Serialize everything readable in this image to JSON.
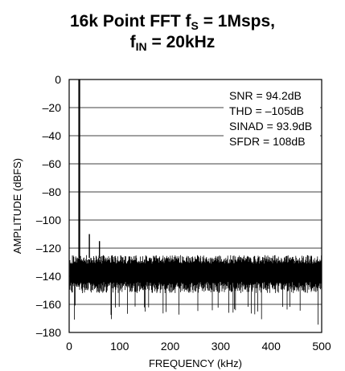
{
  "chart_data": {
    "type": "line",
    "title_line1_pre": "16k Point FFT f",
    "title_line1_sub": "S",
    "title_line1_post": " = 1Msps,",
    "title_line2_pre": "f",
    "title_line2_sub": "IN",
    "title_line2_post": " = 20kHz",
    "xlabel": "FREQUENCY (kHz)",
    "ylabel": "AMPLITUDE (dBFS)",
    "xlim": [
      0,
      500
    ],
    "ylim": [
      -180,
      0
    ],
    "x_ticks": [
      0,
      100,
      200,
      300,
      400,
      500
    ],
    "y_ticks": [
      0,
      -20,
      -40,
      -60,
      -80,
      -100,
      -120,
      -140,
      -160,
      -180
    ],
    "grid": "horizontal",
    "annotations": [
      "SNR = 94.2dB",
      "THD = –105dB",
      "SINAD = 93.9dB",
      "SFDR = 108dB"
    ],
    "noise_floor_band": [
      -125,
      -152
    ],
    "series": [
      {
        "x": [
          20,
          40,
          60
        ],
        "values": [
          0,
          -110,
          -115
        ]
      }
    ]
  }
}
